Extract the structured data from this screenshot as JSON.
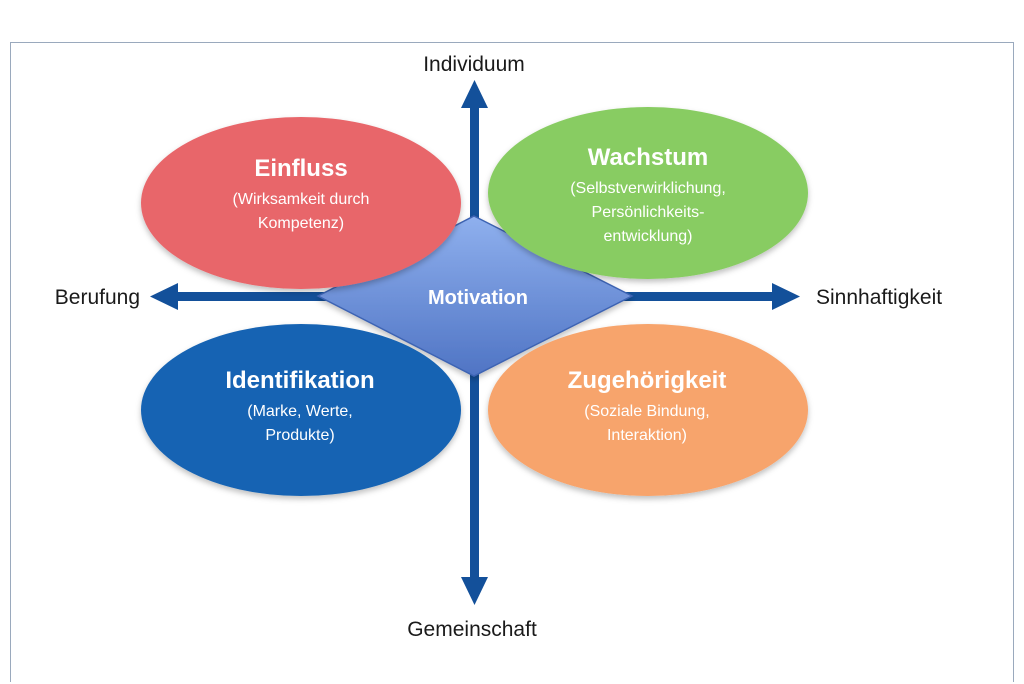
{
  "axes": {
    "top": "Individuum",
    "bottom": "Gemeinschaft",
    "left": "Berufung",
    "right": "Sinnhaftigkeit"
  },
  "center": {
    "label": "Motivation",
    "color": "#6f93dc"
  },
  "quadrants": {
    "top_left": {
      "title": "Einfluss",
      "lines": [
        "(Wirksamkeit durch",
        "Kompetenz)"
      ],
      "color": "#e8666b"
    },
    "top_right": {
      "title": "Wachstum",
      "lines": [
        "(Selbstverwirklichung,",
        "Persönlichkeits-",
        "entwicklung)"
      ],
      "color": "#88cc62"
    },
    "bottom_left": {
      "title": "Identifikation",
      "lines": [
        "(Marke, Werte,",
        "Produkte)"
      ],
      "color": "#1664b3"
    },
    "bottom_right": {
      "title": "Zugehörigkeit",
      "lines": [
        "(Soziale Bindung,",
        "Interaktion)"
      ],
      "color": "#f7a46c"
    }
  },
  "arrow_color": "#13509a"
}
